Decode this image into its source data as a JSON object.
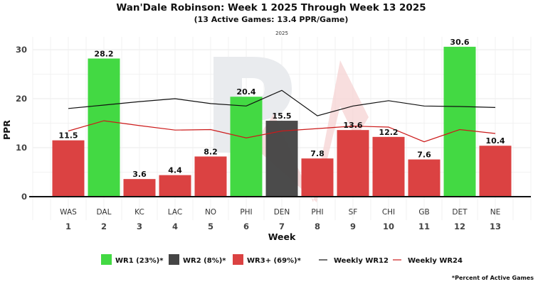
{
  "chart_data": {
    "type": "bar",
    "title": "Wan'Dale Robinson: Week 1 2025 Through Week 13 2025",
    "subtitle": "(13 Active Games: 13.4 PPR/Game)",
    "season_tag": "2025",
    "xlabel": "Week",
    "ylabel": "PPR",
    "ylim": [
      0,
      32
    ],
    "yticks": [
      0,
      10,
      20,
      30
    ],
    "grid": true,
    "weeks": [
      1,
      2,
      3,
      4,
      5,
      6,
      7,
      8,
      9,
      10,
      11,
      12,
      13
    ],
    "opponents": [
      "WAS",
      "DAL",
      "KC",
      "LAC",
      "NO",
      "PHI",
      "DEN",
      "PHI",
      "SF",
      "CHI",
      "GB",
      "DET",
      "NE"
    ],
    "values": [
      11.5,
      28.2,
      3.6,
      4.4,
      8.2,
      20.4,
      15.5,
      7.8,
      13.6,
      12.2,
      7.6,
      30.6,
      10.4
    ],
    "value_labels": [
      "11.5",
      "28.2",
      "3.6",
      "4.4",
      "8.2",
      "20.4",
      "15.5",
      "7.8",
      "13.6",
      "12.2",
      "7.6",
      "30.6",
      "10.4"
    ],
    "tiers": [
      "WR3+",
      "WR1",
      "WR3+",
      "WR3+",
      "WR3+",
      "WR1",
      "WR2",
      "WR3+",
      "WR3+",
      "WR3+",
      "WR3+",
      "WR1",
      "WR3+"
    ],
    "tier_colors": {
      "WR1": "#43d943",
      "WR2": "#454545",
      "WR3+": "#db4242"
    },
    "series": [
      {
        "name": "Weekly WR12",
        "type": "line",
        "color": "#111111",
        "values": [
          18.0,
          18.7,
          19.4,
          20.0,
          19.0,
          18.5,
          21.7,
          16.5,
          18.5,
          19.6,
          18.5,
          18.4,
          18.2
        ]
      },
      {
        "name": "Weekly WR24",
        "type": "line",
        "color": "#cc1a1a",
        "values": [
          13.4,
          15.5,
          14.5,
          13.6,
          13.7,
          12.0,
          13.4,
          13.9,
          14.4,
          14.2,
          11.2,
          13.7,
          12.9
        ]
      }
    ],
    "legend": {
      "position": "bottom",
      "items": [
        {
          "label": "WR1 (23%)*",
          "kind": "box",
          "tier": "WR1"
        },
        {
          "label": "WR2 (8%)*",
          "kind": "box",
          "tier": "WR2"
        },
        {
          "label": "WR3+ (69%)*",
          "kind": "box",
          "tier": "WR3+"
        },
        {
          "label": "Weekly WR12",
          "kind": "line",
          "color": "#111111"
        },
        {
          "label": "Weekly WR24",
          "kind": "line",
          "color": "#cc1a1a"
        }
      ]
    },
    "footnote": "*Percent of Active Games"
  }
}
